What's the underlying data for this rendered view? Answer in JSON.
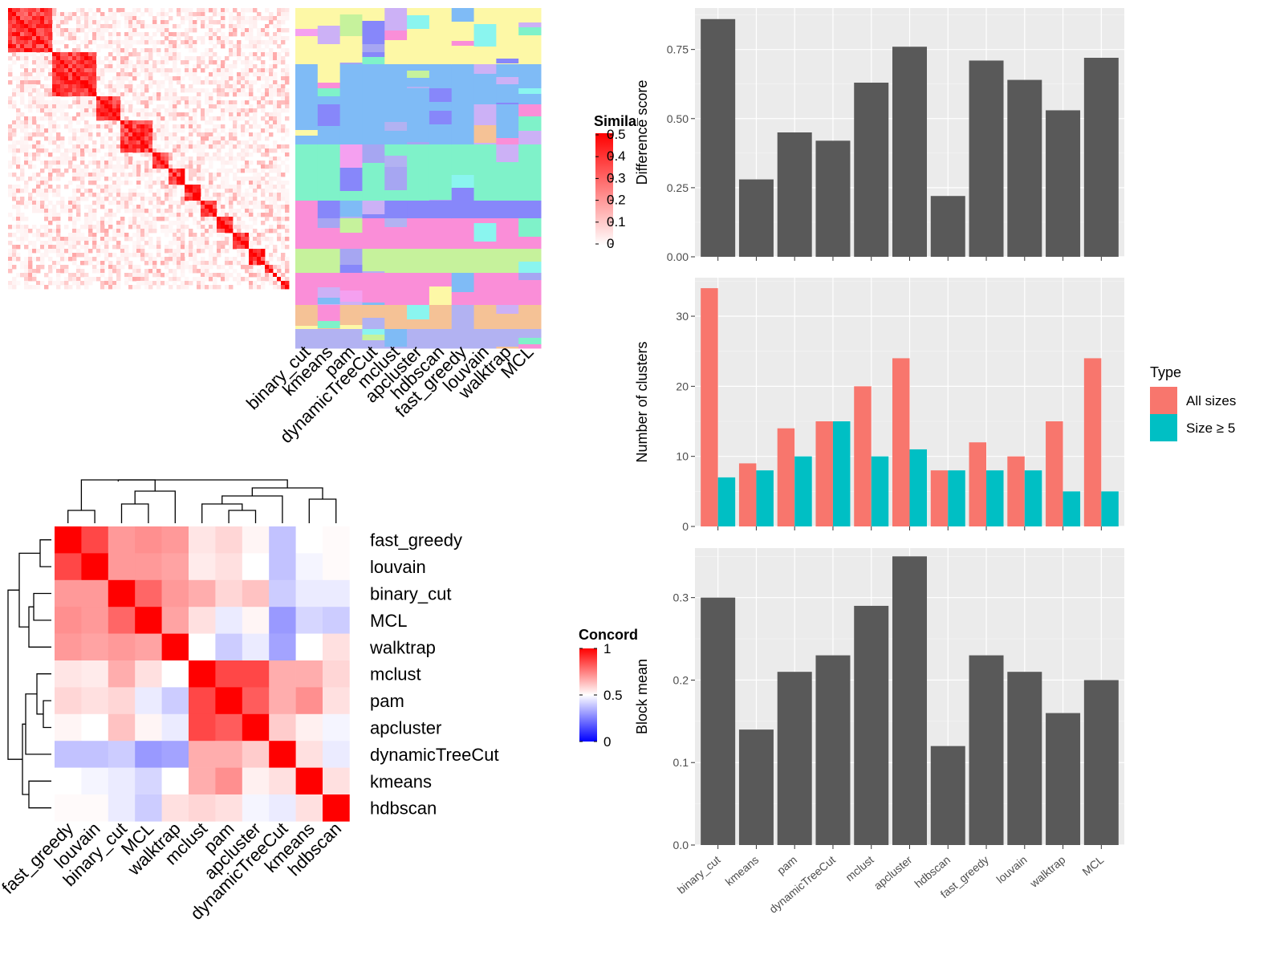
{
  "methods": [
    "binary_cut",
    "kmeans",
    "pam",
    "dynamicTreeCut",
    "mclust",
    "apcluster",
    "hdbscan",
    "fast_greedy",
    "louvain",
    "walktrap",
    "MCL"
  ],
  "similarity_legend": {
    "title": "Similarity",
    "ticks": [
      "0.5",
      "0.4",
      "0.3",
      "0.2",
      "0.1",
      "0"
    ],
    "colors": {
      "high": "#ff0000",
      "low": "#ffffff"
    }
  },
  "concordance_legend": {
    "title": "Concordance",
    "ticks": [
      "1",
      "0.5",
      "0"
    ],
    "colors": {
      "high": "#ff0000",
      "mid": "#ffffff",
      "low": "#0000ff"
    }
  },
  "concordance": {
    "order": [
      "fast_greedy",
      "louvain",
      "binary_cut",
      "MCL",
      "walktrap",
      "mclust",
      "pam",
      "apcluster",
      "dynamicTreeCut",
      "kmeans",
      "hdbscan"
    ],
    "matrix": [
      [
        1.0,
        0.86,
        0.7,
        0.72,
        0.7,
        0.55,
        0.58,
        0.52,
        0.38,
        0.5,
        0.51
      ],
      [
        0.86,
        1.0,
        0.7,
        0.7,
        0.68,
        0.54,
        0.56,
        0.5,
        0.38,
        0.48,
        0.51
      ],
      [
        0.7,
        0.7,
        1.0,
        0.8,
        0.7,
        0.66,
        0.58,
        0.62,
        0.4,
        0.46,
        0.46
      ],
      [
        0.72,
        0.7,
        0.8,
        1.0,
        0.68,
        0.56,
        0.46,
        0.52,
        0.3,
        0.42,
        0.4
      ],
      [
        0.7,
        0.68,
        0.7,
        0.68,
        1.0,
        0.5,
        0.4,
        0.46,
        0.32,
        0.5,
        0.56
      ],
      [
        0.55,
        0.54,
        0.66,
        0.56,
        0.5,
        1.0,
        0.86,
        0.86,
        0.66,
        0.66,
        0.58
      ],
      [
        0.58,
        0.56,
        0.58,
        0.46,
        0.4,
        0.86,
        1.0,
        0.82,
        0.66,
        0.72,
        0.56
      ],
      [
        0.52,
        0.5,
        0.62,
        0.52,
        0.46,
        0.86,
        0.82,
        1.0,
        0.6,
        0.53,
        0.48
      ],
      [
        0.38,
        0.38,
        0.4,
        0.3,
        0.32,
        0.66,
        0.66,
        0.6,
        1.0,
        0.56,
        0.46
      ],
      [
        0.5,
        0.48,
        0.46,
        0.42,
        0.5,
        0.66,
        0.72,
        0.53,
        0.56,
        1.0,
        0.56
      ],
      [
        0.51,
        0.51,
        0.46,
        0.4,
        0.56,
        0.58,
        0.56,
        0.48,
        0.46,
        0.56,
        1.0
      ]
    ]
  },
  "chart_data": [
    {
      "type": "bar",
      "categories": [
        "binary_cut",
        "kmeans",
        "pam",
        "dynamicTreeCut",
        "mclust",
        "apcluster",
        "hdbscan",
        "fast_greedy",
        "louvain",
        "walktrap",
        "MCL"
      ],
      "values": [
        0.86,
        0.28,
        0.45,
        0.42,
        0.63,
        0.76,
        0.22,
        0.71,
        0.64,
        0.53,
        0.72
      ],
      "xlabel": "",
      "ylabel": "Difference score",
      "ylim": [
        0,
        0.9
      ],
      "yticks": [
        0.0,
        0.25,
        0.5,
        0.75
      ],
      "ytick_labels": [
        "0.00",
        "0.25",
        "0.50",
        "0.75"
      ],
      "grid": true,
      "color": "#595959"
    },
    {
      "type": "bar",
      "categories": [
        "binary_cut",
        "kmeans",
        "pam",
        "dynamicTreeCut",
        "mclust",
        "apcluster",
        "hdbscan",
        "fast_greedy",
        "louvain",
        "walktrap",
        "MCL"
      ],
      "series": [
        {
          "name": "All sizes",
          "values": [
            34,
            9,
            14,
            15,
            20,
            24,
            8,
            12,
            10,
            15,
            24
          ],
          "color": "#f8766d"
        },
        {
          "name": "Size ≥ 5",
          "values": [
            7,
            8,
            10,
            15,
            10,
            11,
            8,
            8,
            8,
            5,
            5
          ],
          "color": "#00bfc4"
        }
      ],
      "xlabel": "",
      "ylabel": "Number of clusters",
      "ylim": [
        0,
        35.5
      ],
      "yticks": [
        0,
        10,
        20,
        30
      ],
      "ytick_labels": [
        "0",
        "10",
        "20",
        "30"
      ],
      "legend": {
        "title": "Type",
        "position": "right"
      },
      "grid": true
    },
    {
      "type": "bar",
      "categories": [
        "binary_cut",
        "kmeans",
        "pam",
        "dynamicTreeCut",
        "mclust",
        "apcluster",
        "hdbscan",
        "fast_greedy",
        "louvain",
        "walktrap",
        "MCL"
      ],
      "values": [
        0.3,
        0.14,
        0.21,
        0.23,
        0.29,
        0.35,
        0.12,
        0.23,
        0.21,
        0.16,
        0.2
      ],
      "xlabel": "",
      "ylabel": "Block mean",
      "ylim": [
        0,
        0.36
      ],
      "yticks": [
        0.0,
        0.1,
        0.2,
        0.3
      ],
      "ytick_labels": [
        "0.0",
        "0.1",
        "0.2",
        "0.3"
      ],
      "grid": true,
      "color": "#595959"
    }
  ]
}
